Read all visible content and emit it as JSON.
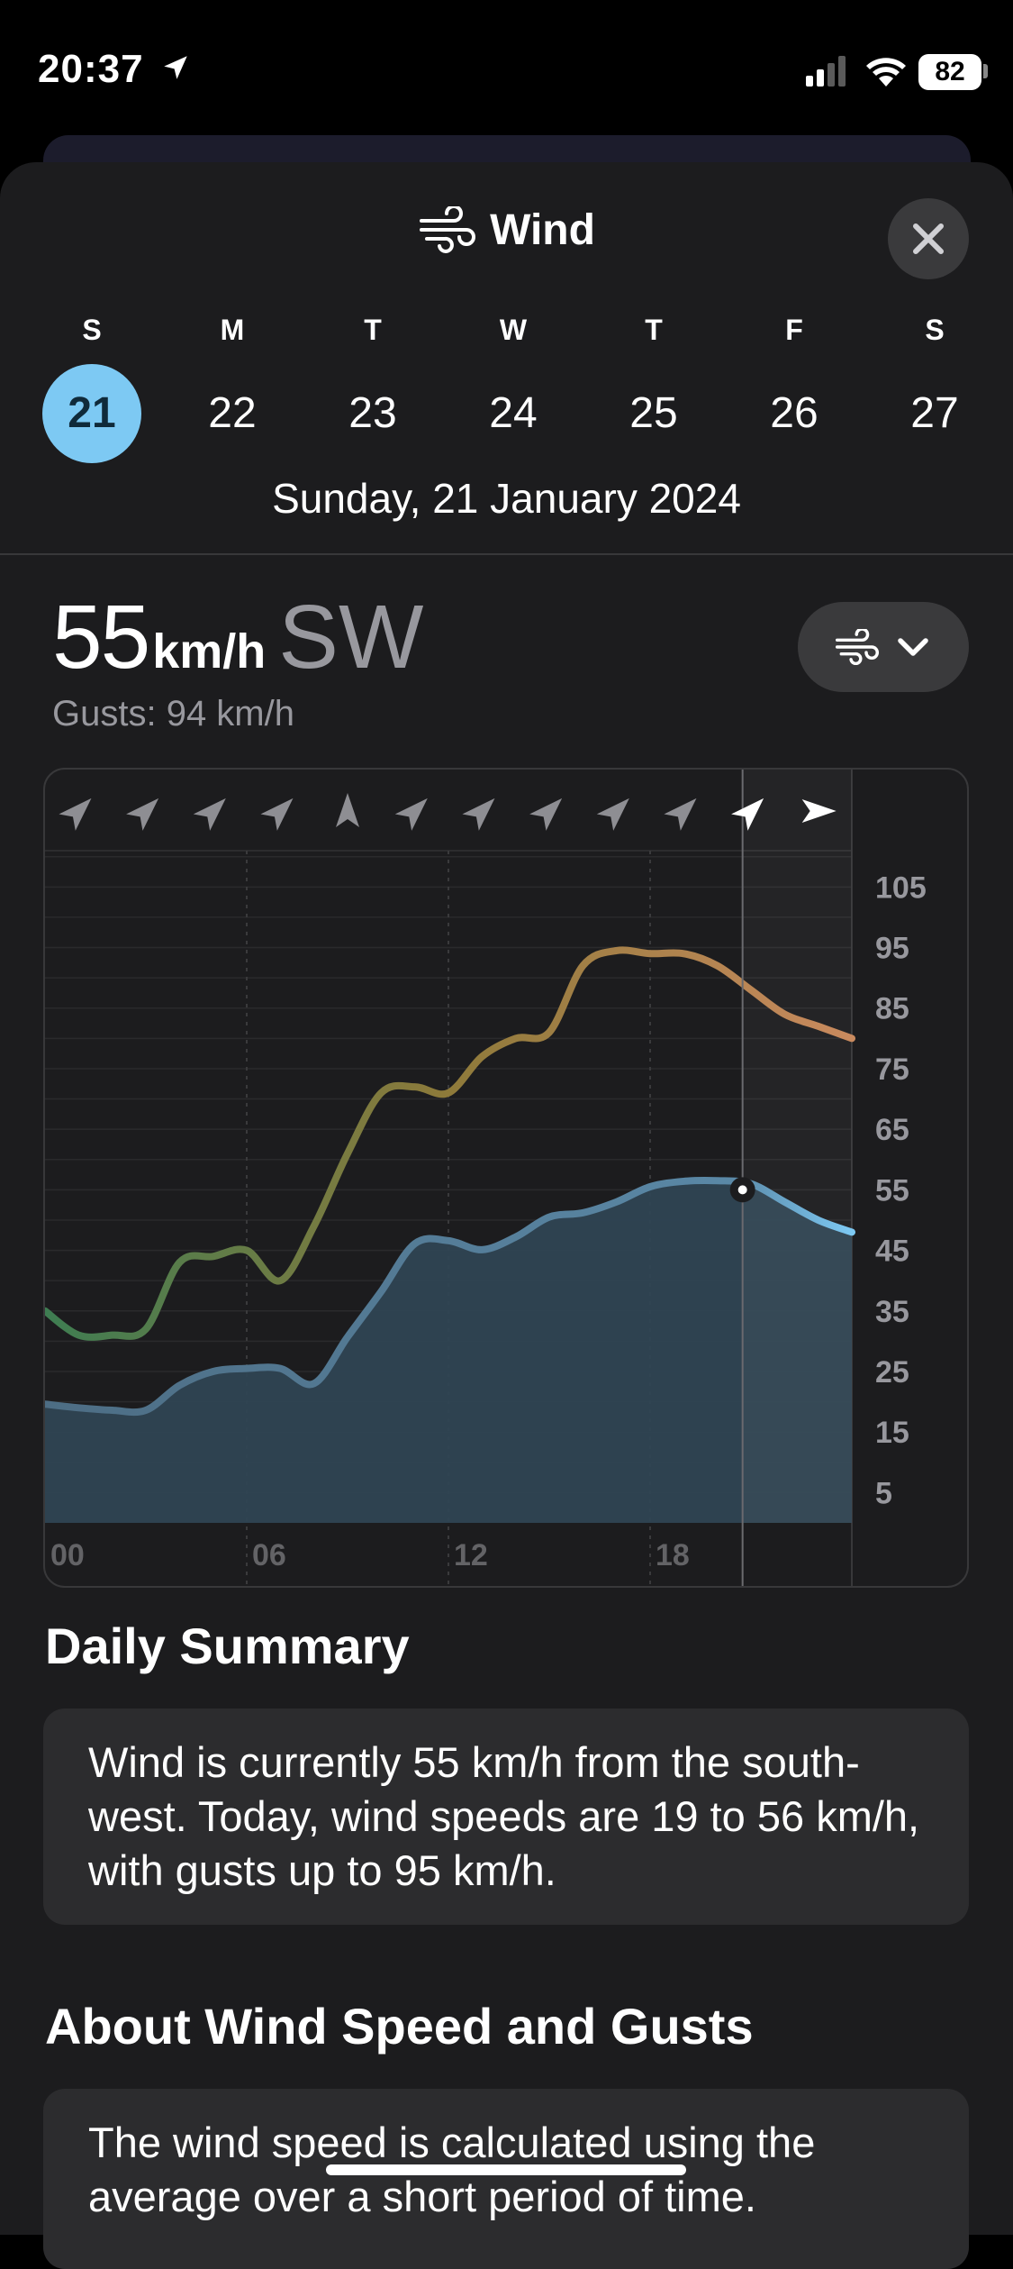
{
  "status_bar": {
    "time": "20:37",
    "battery": "82"
  },
  "header": {
    "title": "Wind"
  },
  "week": {
    "days": [
      {
        "dow": "S",
        "num": "21",
        "selected": true
      },
      {
        "dow": "M",
        "num": "22"
      },
      {
        "dow": "T",
        "num": "23"
      },
      {
        "dow": "W",
        "num": "24"
      },
      {
        "dow": "T",
        "num": "25"
      },
      {
        "dow": "F",
        "num": "26"
      },
      {
        "dow": "S",
        "num": "27"
      }
    ],
    "selected_date": "Sunday, 21 January 2024"
  },
  "current": {
    "speed": "55",
    "unit": "km/h",
    "direction": "SW",
    "gusts": "Gusts: 94 km/h"
  },
  "chart_data": {
    "type": "area",
    "x_labels": [
      "00",
      "06",
      "12",
      "18"
    ],
    "y_ticks": [
      105,
      95,
      85,
      75,
      65,
      55,
      45,
      35,
      25,
      15,
      5
    ],
    "ylim": [
      0,
      111
    ],
    "x": [
      0,
      1,
      2,
      3,
      4,
      5,
      6,
      7,
      8,
      9,
      10,
      11,
      12,
      13,
      14,
      15,
      16,
      17,
      18,
      19,
      20,
      21,
      22,
      23,
      24
    ],
    "series": [
      {
        "values": [
          19.6,
          19,
          18.6,
          18.6,
          22.7,
          25,
          25.5,
          25.5,
          23,
          30.7,
          38.2,
          46.1,
          46.6,
          45.1,
          47.2,
          50.5,
          51.2,
          53,
          55.5,
          56.4,
          56.5,
          56,
          53,
          50,
          48
        ]
      },
      {
        "values": [
          35,
          31,
          31,
          32,
          43,
          44,
          45,
          40,
          49,
          61,
          71,
          72,
          71,
          77,
          80,
          81,
          92,
          94.5,
          94,
          94,
          92,
          88,
          84,
          82,
          80
        ]
      }
    ],
    "current_hour": 20.75,
    "current_value": 55,
    "directions": [
      "ne",
      "ne",
      "ne",
      "ne",
      "n",
      "ne",
      "ne",
      "ne",
      "ne",
      "ne",
      "ne",
      "e"
    ],
    "colors": {
      "speed": "#7dc9f3",
      "gust_low": "#3e7d52",
      "gust_mid": "#8e7a3a",
      "gust_high": "#c98a5e"
    }
  },
  "daily_summary": {
    "heading": "Daily Summary",
    "text": "Wind is currently 55 km/h from the south-west. Today, wind speeds are 19 to 56 km/h, with gusts up to 95 km/h."
  },
  "about": {
    "heading": "About Wind Speed and Gusts",
    "text": "The wind speed is calculated using the average over a short period of time."
  }
}
